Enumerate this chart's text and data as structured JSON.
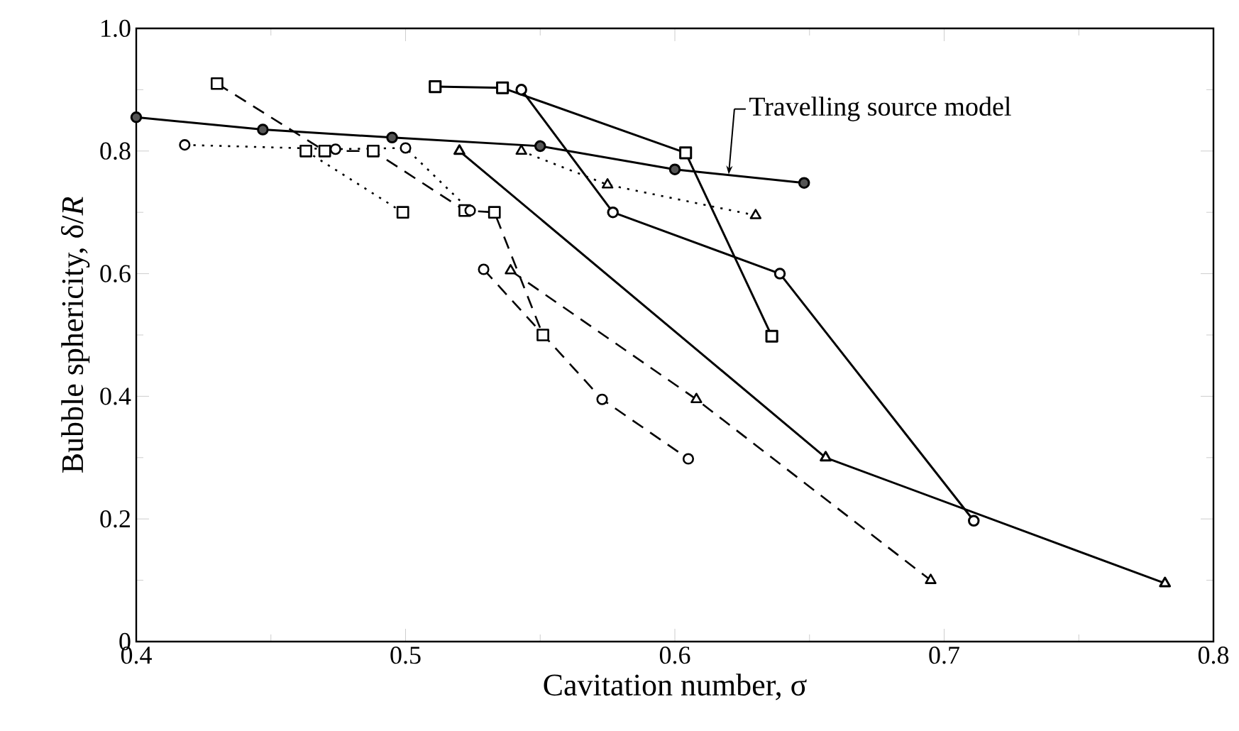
{
  "chart_data": {
    "type": "line",
    "xlabel": "Cavitation number, σ",
    "ylabel": "Bubble sphericity, δ/*R*",
    "xlim": [
      0.4,
      0.8
    ],
    "xticks": [
      0.4,
      0.5,
      0.6,
      0.7,
      0.8
    ],
    "ylim": [
      0,
      1.0
    ],
    "yticks": [
      0,
      0.2,
      0.4,
      0.6,
      0.8,
      {
        "value": 1.0,
        "label": "1.0"
      }
    ],
    "annotations": [
      {
        "text": "Travelling source model",
        "x": 0.62,
        "y": 0.762
      }
    ],
    "series": [
      {
        "color": "#555555",
        "marker": "filled circle",
        "line_style": "solid",
        "x": [
          0.4,
          0.447,
          0.495,
          0.55,
          0.6,
          0.648
        ],
        "values": [
          0.855,
          0.835,
          0.822,
          0.808,
          0.77,
          0.748
        ]
      },
      {
        "color": "#000000",
        "marker": "square",
        "line_style": "solid",
        "x": [
          0.511,
          0.536,
          0.604,
          0.636
        ],
        "values": [
          0.905,
          0.903,
          0.797,
          0.498
        ]
      },
      {
        "color": "#000000",
        "marker": "circle",
        "line_style": "solid",
        "x": [
          0.543,
          0.577,
          0.639,
          0.711
        ],
        "values": [
          0.9,
          0.7,
          0.6,
          0.197
        ]
      },
      {
        "color": "#000000",
        "marker": "triangle",
        "line_style": "solid",
        "x": [
          0.52,
          0.656,
          0.782
        ],
        "values": [
          0.8,
          0.3,
          0.095
        ]
      },
      {
        "color": "#000000",
        "marker": "square",
        "line_style": "dashed",
        "x": [
          0.43,
          0.47,
          0.488,
          0.522,
          0.533,
          0.551
        ],
        "values": [
          0.91,
          0.8,
          0.8,
          0.703,
          0.7,
          0.5
        ]
      },
      {
        "color": "#000000",
        "marker": "circle",
        "line_style": "dashed",
        "x": [
          0.529,
          0.573,
          0.605
        ],
        "values": [
          0.607,
          0.395,
          0.298
        ]
      },
      {
        "color": "#000000",
        "marker": "triangle",
        "line_style": "dashed",
        "x": [
          0.539,
          0.608,
          0.695
        ],
        "values": [
          0.605,
          0.395,
          0.1
        ]
      },
      {
        "color": "#000000",
        "marker": "circle",
        "line_style": "dotted",
        "x": [
          0.418,
          0.474,
          0.5,
          0.524
        ],
        "values": [
          0.81,
          0.803,
          0.805,
          0.703
        ]
      },
      {
        "color": "#000000",
        "marker": "square",
        "line_style": "dotted",
        "x": [
          0.463,
          0.499
        ],
        "values": [
          0.8,
          0.7
        ]
      },
      {
        "color": "#000000",
        "marker": "triangle",
        "line_style": "dotted",
        "x": [
          0.543,
          0.575,
          0.63
        ],
        "values": [
          0.8,
          0.745,
          0.695
        ]
      }
    ]
  }
}
